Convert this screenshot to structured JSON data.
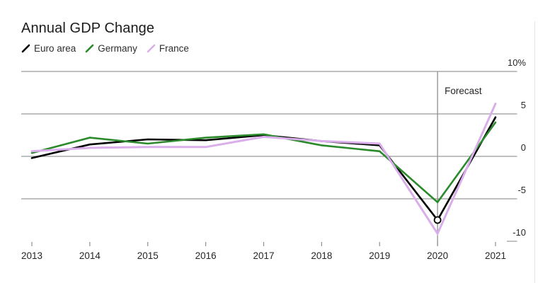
{
  "header": {
    "title": "Annual GDP Change"
  },
  "legend": {
    "items": [
      {
        "label": "Euro area",
        "color": "#000000",
        "icon": "line-slash-icon"
      },
      {
        "label": "Germany",
        "color": "#2b8a2b",
        "icon": "line-slash-icon"
      },
      {
        "label": "France",
        "color": "#d9aeea",
        "icon": "line-slash-icon"
      }
    ]
  },
  "annotations": {
    "forecast_label": "Forecast"
  },
  "chart_data": {
    "type": "line",
    "title": "Annual GDP Change",
    "xlabel": "",
    "ylabel": "",
    "x": [
      2013,
      2014,
      2015,
      2016,
      2017,
      2018,
      2019,
      2020,
      2021
    ],
    "x_tick_labels": [
      "2013",
      "2014",
      "2015",
      "2016",
      "2017",
      "2018",
      "2019",
      "2020",
      "2021"
    ],
    "series": [
      {
        "name": "Euro area",
        "color": "#000000",
        "values": [
          -0.2,
          1.4,
          2.0,
          1.9,
          2.5,
          1.8,
          1.3,
          -7.5,
          4.6
        ]
      },
      {
        "name": "Germany",
        "color": "#2b8a2b",
        "values": [
          0.4,
          2.2,
          1.5,
          2.2,
          2.6,
          1.3,
          0.6,
          -5.4,
          4.0
        ]
      },
      {
        "name": "France",
        "color": "#d9aeea",
        "values": [
          0.6,
          1.0,
          1.1,
          1.1,
          2.3,
          1.8,
          1.5,
          -9.1,
          6.2
        ]
      }
    ],
    "ylim": [
      -10,
      10
    ],
    "y_ticks": [
      10,
      5,
      0,
      -5,
      -10
    ],
    "y_tick_labels": [
      "10%",
      "5",
      "0",
      "-5",
      "-10"
    ],
    "grid": "horizontal",
    "legend_position": "top-left",
    "forecast_line_x": 2020,
    "marker": {
      "series": "Euro area",
      "x": 2020,
      "value": -7.5,
      "style": "open-circle"
    },
    "colors": {
      "grid": "#999999",
      "forecast_line": "#8f8f8f",
      "axis_text": "#262626"
    }
  }
}
